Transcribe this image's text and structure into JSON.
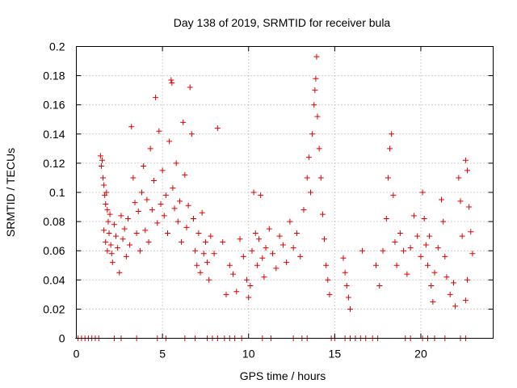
{
  "chart_data": {
    "type": "scatter",
    "title": "Day 138 of 2019, SRMTID for receiver bula",
    "xlabel": "GPS time / hours",
    "ylabel": "SRMTID / TECUs",
    "xlim": [
      0,
      24.2
    ],
    "ylim": [
      0,
      0.2
    ],
    "grid": true,
    "marker": "+",
    "color": "#e00000",
    "x_ticks": [
      {
        "value": 0,
        "label": "0"
      },
      {
        "value": 5,
        "label": "5"
      },
      {
        "value": 10,
        "label": "10"
      },
      {
        "value": 15,
        "label": "15"
      },
      {
        "value": 20,
        "label": "20"
      }
    ],
    "y_ticks": [
      {
        "value": 0,
        "label": "0"
      },
      {
        "value": 0.02,
        "label": "0.02"
      },
      {
        "value": 0.04,
        "label": "0.04"
      },
      {
        "value": 0.06,
        "label": "0.06"
      },
      {
        "value": 0.08,
        "label": "0.08"
      },
      {
        "value": 0.1,
        "label": "0.1"
      },
      {
        "value": 0.12,
        "label": "0.12"
      },
      {
        "value": 0.14,
        "label": "0.14"
      },
      {
        "value": 0.16,
        "label": "0.16"
      },
      {
        "value": 0.18,
        "label": "0.18"
      },
      {
        "value": 0.2,
        "label": "0.2"
      }
    ],
    "series": [
      {
        "name": "SRMTID",
        "points": [
          [
            0.1,
            0
          ],
          [
            0.3,
            0
          ],
          [
            0.5,
            0
          ],
          [
            0.7,
            0
          ],
          [
            0.9,
            0
          ],
          [
            1.1,
            0
          ],
          [
            1.3,
            0
          ],
          [
            2.2,
            0
          ],
          [
            2.6,
            0
          ],
          [
            3.5,
            0
          ],
          [
            4.7,
            0
          ],
          [
            5.2,
            0
          ],
          [
            6.3,
            0
          ],
          [
            6.9,
            0
          ],
          [
            7.6,
            0
          ],
          [
            7.9,
            0
          ],
          [
            8.2,
            0
          ],
          [
            8.6,
            0
          ],
          [
            8.9,
            0
          ],
          [
            9.2,
            0
          ],
          [
            9.6,
            0
          ],
          [
            10.8,
            0
          ],
          [
            11.3,
            0
          ],
          [
            12.6,
            0
          ],
          [
            13.1,
            0
          ],
          [
            13.4,
            0
          ],
          [
            14.8,
            0
          ],
          [
            15.0,
            0
          ],
          [
            15.6,
            0
          ],
          [
            15.9,
            0
          ],
          [
            16.2,
            0
          ],
          [
            16.5,
            0
          ],
          [
            16.8,
            0
          ],
          [
            17.2,
            0
          ],
          [
            17.5,
            0
          ],
          [
            19.1,
            0
          ],
          [
            19.4,
            0
          ],
          [
            20.1,
            0
          ],
          [
            20.4,
            0
          ],
          [
            20.8,
            0
          ],
          [
            21.4,
            0
          ],
          [
            22.3,
            0
          ],
          [
            22.6,
            0
          ],
          [
            1.4,
            0.125
          ],
          [
            1.45,
            0.118
          ],
          [
            1.5,
            0.122
          ],
          [
            1.55,
            0.11
          ],
          [
            1.6,
            0.105
          ],
          [
            1.65,
            0.098
          ],
          [
            1.7,
            0.092
          ],
          [
            1.75,
            0.1
          ],
          [
            1.8,
            0.088
          ],
          [
            1.85,
            0.08
          ],
          [
            1.9,
            0.072
          ],
          [
            1.95,
            0.085
          ],
          [
            2.0,
            0.064
          ],
          [
            2.05,
            0.058
          ],
          [
            1.6,
            0.074
          ],
          [
            1.7,
            0.066
          ],
          [
            1.8,
            0.06
          ],
          [
            2.1,
            0.052
          ],
          [
            2.2,
            0.078
          ],
          [
            2.3,
            0.07
          ],
          [
            2.4,
            0.062
          ],
          [
            2.5,
            0.045
          ],
          [
            2.6,
            0.084
          ],
          [
            2.7,
            0.068
          ],
          [
            2.8,
            0.075
          ],
          [
            2.9,
            0.056
          ],
          [
            3.0,
            0.082
          ],
          [
            3.1,
            0.064
          ],
          [
            3.2,
            0.145
          ],
          [
            3.3,
            0.11
          ],
          [
            3.4,
            0.093
          ],
          [
            3.5,
            0.072
          ],
          [
            3.6,
            0.087
          ],
          [
            3.7,
            0.06
          ],
          [
            3.8,
            0.1
          ],
          [
            3.9,
            0.118
          ],
          [
            4.0,
            0.074
          ],
          [
            4.1,
            0.095
          ],
          [
            4.2,
            0.066
          ],
          [
            4.3,
            0.13
          ],
          [
            4.4,
            0.088
          ],
          [
            4.5,
            0.108
          ],
          [
            4.6,
            0.165
          ],
          [
            4.7,
            0.079
          ],
          [
            4.8,
            0.142
          ],
          [
            4.9,
            0.092
          ],
          [
            5.0,
            0.115
          ],
          [
            5.1,
            0.084
          ],
          [
            5.2,
            0.098
          ],
          [
            5.3,
            0.072
          ],
          [
            5.4,
            0.135
          ],
          [
            5.5,
            0.177
          ],
          [
            5.55,
            0.175
          ],
          [
            5.6,
            0.103
          ],
          [
            5.7,
            0.089
          ],
          [
            5.8,
            0.12
          ],
          [
            5.9,
            0.08
          ],
          [
            6.0,
            0.094
          ],
          [
            6.1,
            0.066
          ],
          [
            6.2,
            0.148
          ],
          [
            6.3,
            0.112
          ],
          [
            6.4,
            0.076
          ],
          [
            6.5,
            0.091
          ],
          [
            6.6,
            0.172
          ],
          [
            6.7,
            0.14
          ],
          [
            6.8,
            0.082
          ],
          [
            6.9,
            0.06
          ],
          [
            7.0,
            0.05
          ],
          [
            7.1,
            0.072
          ],
          [
            7.2,
            0.045
          ],
          [
            7.3,
            0.086
          ],
          [
            7.4,
            0.058
          ],
          [
            7.5,
            0.066
          ],
          [
            7.6,
            0.052
          ],
          [
            7.7,
            0.04
          ],
          [
            7.8,
            0.07
          ],
          [
            8.0,
            0.058
          ],
          [
            8.2,
            0.144
          ],
          [
            8.5,
            0.066
          ],
          [
            8.7,
            0.03
          ],
          [
            8.9,
            0.05
          ],
          [
            9.1,
            0.044
          ],
          [
            9.3,
            0.032
          ],
          [
            9.5,
            0.068
          ],
          [
            9.7,
            0.056
          ],
          [
            9.9,
            0.04
          ],
          [
            10.0,
            0.028
          ],
          [
            10.1,
            0.036
          ],
          [
            10.2,
            0.06
          ],
          [
            10.3,
            0.1
          ],
          [
            10.4,
            0.072
          ],
          [
            10.5,
            0.05
          ],
          [
            10.6,
            0.068
          ],
          [
            10.7,
            0.098
          ],
          [
            10.8,
            0.055
          ],
          [
            10.9,
            0.042
          ],
          [
            11.0,
            0.062
          ],
          [
            11.2,
            0.075
          ],
          [
            11.4,
            0.058
          ],
          [
            11.6,
            0.048
          ],
          [
            11.8,
            0.07
          ],
          [
            12.0,
            0.064
          ],
          [
            12.2,
            0.052
          ],
          [
            12.4,
            0.08
          ],
          [
            12.6,
            0.062
          ],
          [
            12.8,
            0.072
          ],
          [
            13.0,
            0.056
          ],
          [
            13.2,
            0.088
          ],
          [
            13.4,
            0.11
          ],
          [
            13.5,
            0.124
          ],
          [
            13.6,
            0.1
          ],
          [
            13.7,
            0.14
          ],
          [
            13.8,
            0.16
          ],
          [
            13.85,
            0.17
          ],
          [
            13.9,
            0.178
          ],
          [
            13.95,
            0.193
          ],
          [
            14.0,
            0.152
          ],
          [
            14.1,
            0.13
          ],
          [
            14.2,
            0.11
          ],
          [
            14.3,
            0.085
          ],
          [
            14.4,
            0.068
          ],
          [
            14.5,
            0.05
          ],
          [
            14.6,
            0.04
          ],
          [
            14.7,
            0.03
          ],
          [
            15.5,
            0.055
          ],
          [
            15.6,
            0.045
          ],
          [
            15.7,
            0.036
          ],
          [
            15.8,
            0.028
          ],
          [
            15.9,
            0.02
          ],
          [
            16.6,
            0.06
          ],
          [
            17.4,
            0.05
          ],
          [
            17.6,
            0.036
          ],
          [
            17.8,
            0.06
          ],
          [
            18.0,
            0.082
          ],
          [
            18.1,
            0.11
          ],
          [
            18.2,
            0.13
          ],
          [
            18.3,
            0.14
          ],
          [
            18.4,
            0.098
          ],
          [
            18.5,
            0.066
          ],
          [
            18.6,
            0.05
          ],
          [
            18.8,
            0.072
          ],
          [
            19.0,
            0.06
          ],
          [
            19.2,
            0.044
          ],
          [
            19.4,
            0.062
          ],
          [
            19.6,
            0.084
          ],
          [
            19.8,
            0.07
          ],
          [
            20.0,
            0.056
          ],
          [
            20.1,
            0.1
          ],
          [
            20.2,
            0.082
          ],
          [
            20.3,
            0.064
          ],
          [
            20.4,
            0.05
          ],
          [
            20.5,
            0.07
          ],
          [
            20.6,
            0.036
          ],
          [
            20.7,
            0.025
          ],
          [
            20.8,
            0.045
          ],
          [
            21.0,
            0.062
          ],
          [
            21.2,
            0.095
          ],
          [
            21.3,
            0.08
          ],
          [
            21.4,
            0.056
          ],
          [
            21.5,
            0.042
          ],
          [
            21.7,
            0.03
          ],
          [
            21.9,
            0.038
          ],
          [
            22.0,
            0.022
          ],
          [
            22.2,
            0.11
          ],
          [
            22.3,
            0.094
          ],
          [
            22.4,
            0.07
          ],
          [
            22.6,
            0.122
          ],
          [
            22.7,
            0.115
          ],
          [
            22.8,
            0.09
          ],
          [
            22.9,
            0.073
          ],
          [
            23.0,
            0.058
          ],
          [
            22.7,
            0.04
          ],
          [
            22.6,
            0.026
          ]
        ]
      }
    ]
  }
}
